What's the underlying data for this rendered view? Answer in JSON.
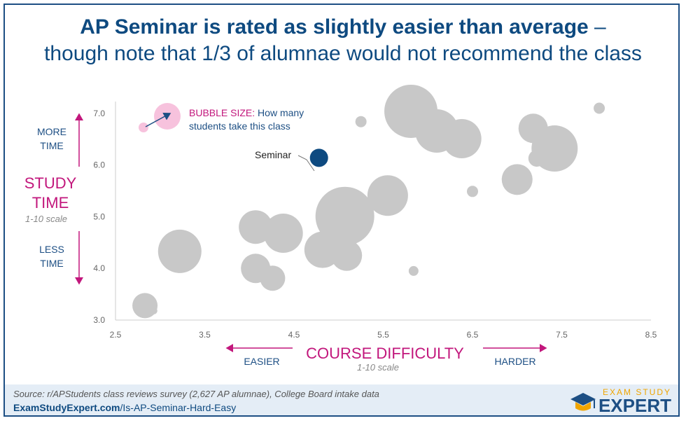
{
  "title": {
    "line1_bold": "AP Seminar is rated as slightly easier than average",
    "line1_dash": " –",
    "line2": "though note that 1/3 of alumnae would not recommend the class"
  },
  "y_side": {
    "more_time": "MORE TIME",
    "less_time": "LESS TIME",
    "study_time": "STUDY TIME",
    "scale": "1-10 scale"
  },
  "x_side": {
    "easier": "EASIER",
    "harder": "HARDER",
    "course_difficulty": "COURSE DIFFICULTY",
    "scale": "1-10 scale"
  },
  "bubble_note": {
    "key": "BUBBLE SIZE:",
    "text": " How many students take this class"
  },
  "seminar_label": "Seminar",
  "footer": {
    "source": "Source: r/APStudents class reviews survey (2,627 AP alumnae), College Board intake data",
    "url_bold": "ExamStudyExpert.com",
    "url_rest": "/Is-AP-Seminar-Hard-Easy",
    "brand_top": "EXAM STUDY",
    "brand_main": "EXPERT"
  },
  "colors": {
    "bubble": "#c8c8c8",
    "highlight": "#0e4a80",
    "accent": "#c2177c",
    "legend_bubble": "#f7c2dd"
  },
  "chart_data": {
    "type": "scatter",
    "xlim": [
      2.5,
      8.5
    ],
    "ylim": [
      3.0,
      7.5
    ],
    "x_ticks": [
      "2.5",
      "3.5",
      "4.5",
      "5.5",
      "6.5",
      "7.5",
      "8.5"
    ],
    "y_ticks": [
      "3.0",
      "4.0",
      "5.0",
      "6.0",
      "7.0"
    ],
    "grid": false,
    "points": [
      {
        "x": 2.83,
        "y": 3.28,
        "size": 18
      },
      {
        "x": 2.93,
        "y": 3.18,
        "size": 5
      },
      {
        "x": 3.22,
        "y": 4.33,
        "size": 31
      },
      {
        "x": 4.07,
        "y": 4.8,
        "size": 24
      },
      {
        "x": 4.07,
        "y": 4.0,
        "size": 21
      },
      {
        "x": 4.26,
        "y": 3.81,
        "size": 18
      },
      {
        "x": 4.38,
        "y": 4.68,
        "size": 28
      },
      {
        "x": 4.82,
        "y": 4.36,
        "size": 26
      },
      {
        "x": 5.09,
        "y": 4.25,
        "size": 22
      },
      {
        "x": 5.07,
        "y": 5.01,
        "size": 42
      },
      {
        "x": 5.25,
        "y": 6.84,
        "size": 8
      },
      {
        "x": 5.55,
        "y": 5.41,
        "size": 29
      },
      {
        "x": 5.84,
        "y": 3.95,
        "size": 7
      },
      {
        "x": 5.81,
        "y": 7.04,
        "size": 38
      },
      {
        "x": 6.1,
        "y": 6.66,
        "size": 31
      },
      {
        "x": 6.38,
        "y": 6.51,
        "size": 28
      },
      {
        "x": 6.5,
        "y": 5.49,
        "size": 8
      },
      {
        "x": 7.0,
        "y": 5.72,
        "size": 22
      },
      {
        "x": 7.18,
        "y": 6.71,
        "size": 21
      },
      {
        "x": 7.22,
        "y": 6.13,
        "size": 12
      },
      {
        "x": 7.42,
        "y": 6.32,
        "size": 33
      },
      {
        "x": 7.92,
        "y": 7.1,
        "size": 8
      },
      {
        "x": 4.78,
        "y": 6.14,
        "size": 13,
        "label": "Seminar",
        "highlight": true
      }
    ]
  }
}
